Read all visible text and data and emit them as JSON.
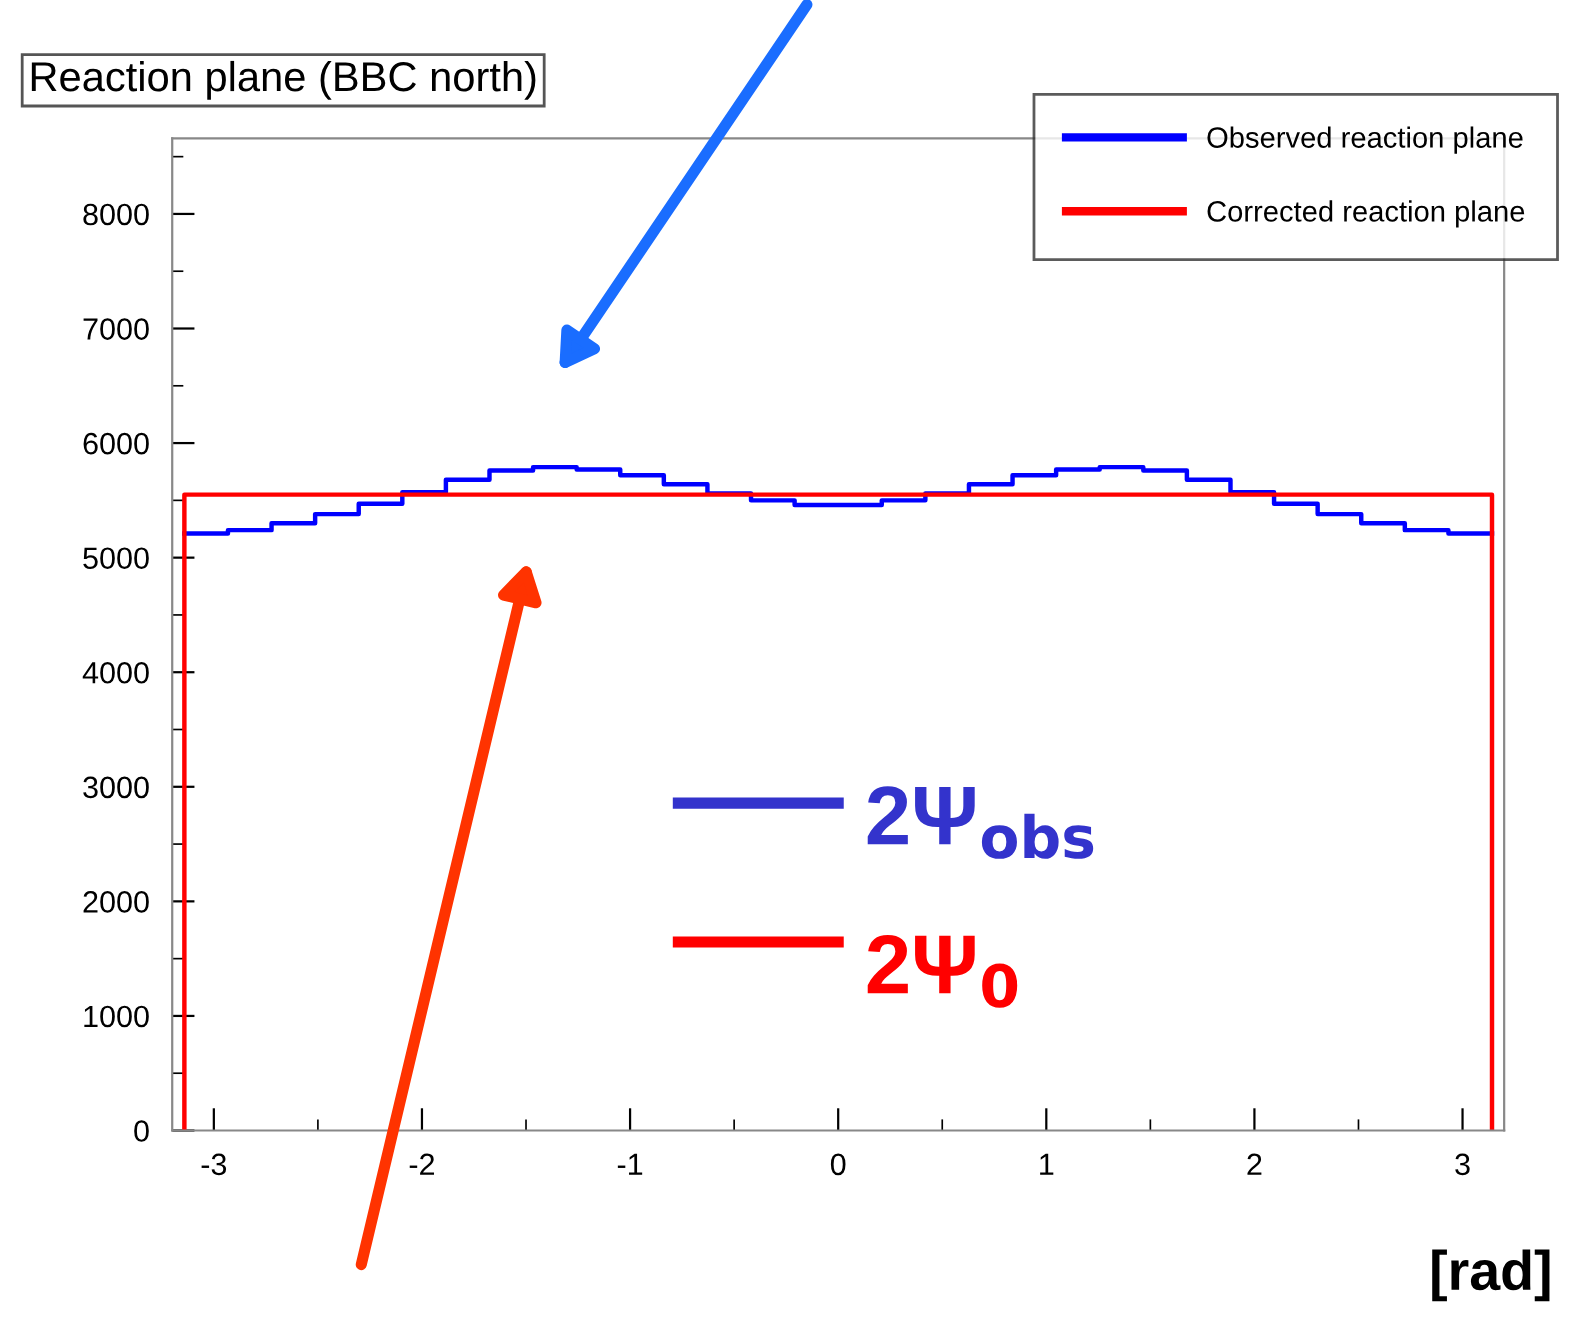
{
  "chart_data": {
    "type": "step",
    "title": "Reaction plane (BBC north)",
    "xlabel": "[rad]",
    "xlim": [
      -3.2,
      3.2
    ],
    "xticks": [
      -3,
      -2,
      -1,
      0,
      1,
      2,
      3
    ],
    "ylim": [
      0,
      8660
    ],
    "yticks": [
      0,
      1000,
      2000,
      3000,
      4000,
      5000,
      6000,
      7000,
      8000
    ],
    "grid": false,
    "legend": "top right",
    "annotations": [
      "2Ψ$_{obs}$",
      "2Ψ$_{0}$"
    ],
    "series": [
      {
        "name": "Observed reaction plane",
        "color": "#0000ff",
        "x": [
          -3.1416,
          -2.9322,
          -2.7227,
          -2.5133,
          -2.3038,
          -2.0944,
          -1.885,
          -1.6755,
          -1.4661,
          -1.2566,
          -1.0472,
          -0.8378,
          -0.6283,
          -0.4189,
          -0.2094,
          0,
          0.2094,
          0.4189,
          0.6283,
          0.8378,
          1.0472,
          1.2566,
          1.4661,
          1.6755,
          1.885,
          2.0944,
          2.3038,
          2.5133,
          2.7227,
          2.9322,
          3.1416
        ],
        "values": [
          5210,
          5240,
          5300,
          5380,
          5470,
          5570,
          5680,
          5760,
          5790,
          5770,
          5720,
          5640,
          5560,
          5500,
          5460,
          5460,
          5500,
          5560,
          5640,
          5720,
          5770,
          5790,
          5760,
          5680,
          5570,
          5470,
          5380,
          5300,
          5240,
          5210,
          5210
        ]
      },
      {
        "name": "Corrected reaction plane",
        "color": "#ff0000",
        "type": "line",
        "x": [
          -3.1416,
          -3.1416,
          3.1416,
          3.1416
        ],
        "values": [
          0,
          5550,
          5550,
          0
        ]
      }
    ]
  }
}
